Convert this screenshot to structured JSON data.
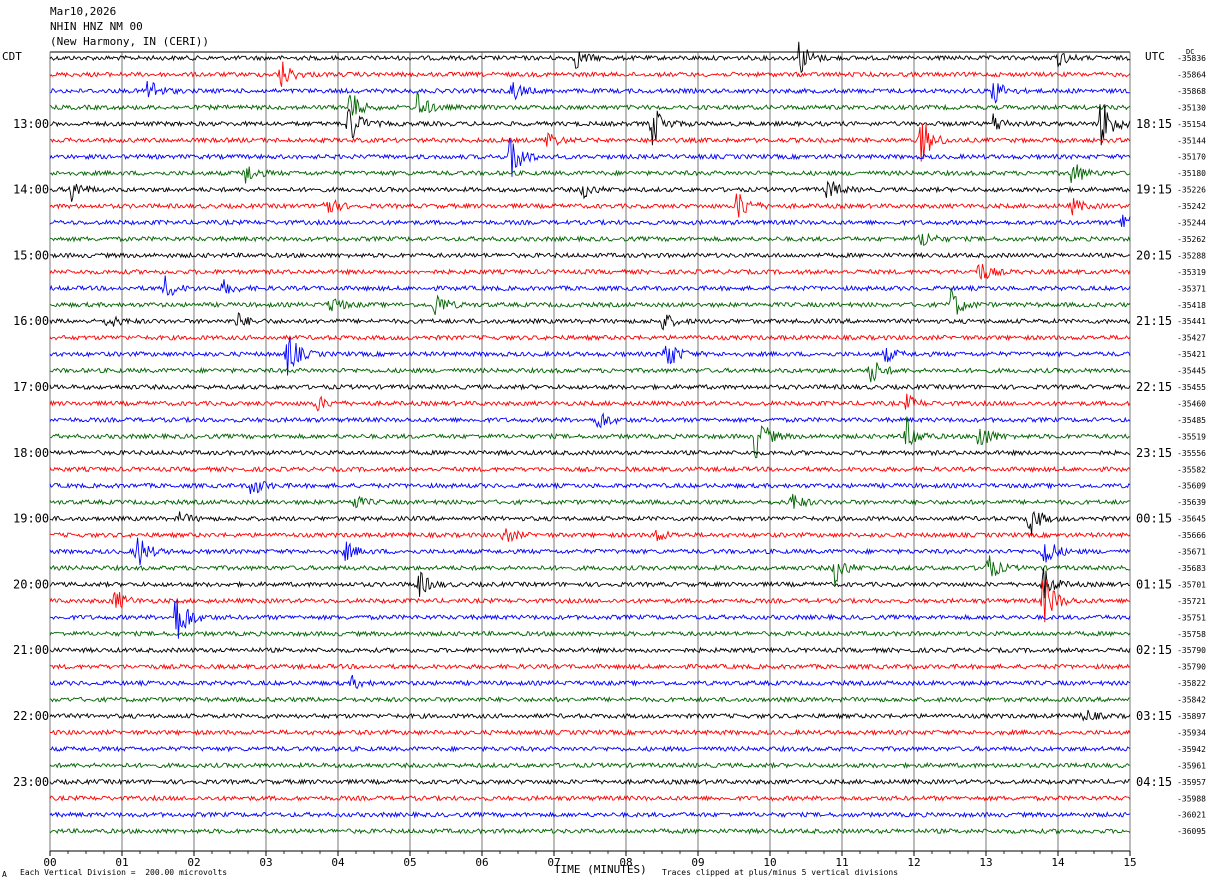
{
  "header": {
    "date": "Mar10,2026",
    "station": "NHIN HNZ NM 00",
    "location": "(New Harmony, IN (CERI))"
  },
  "left_tz": "CDT",
  "right_tz": "UTC",
  "dc_label": "DC",
  "footer": {
    "scale": "Each Vertical Division =  200.00 microvolts",
    "xlabel": "TIME (MINUTES)",
    "clip": "Traces clipped at plus/minus 5 vertical divisions",
    "corner_mark": "A"
  },
  "chart_data": {
    "type": "line",
    "title": "NHIN HNZ NM 00",
    "xlabel": "TIME (MINUTES)",
    "xlim": [
      0,
      15
    ],
    "x_ticks": [
      "00",
      "01",
      "02",
      "03",
      "04",
      "05",
      "06",
      "07",
      "08",
      "09",
      "10",
      "11",
      "12",
      "13",
      "14",
      "15"
    ],
    "trace_colors": [
      "#000000",
      "#ff0000",
      "#0000ff",
      "#006400"
    ],
    "left_time_labels": [
      "13:00",
      "14:00",
      "15:00",
      "16:00",
      "17:00",
      "18:00",
      "19:00",
      "20:00",
      "21:00",
      "22:00",
      "23:00"
    ],
    "right_time_labels": [
      "18:15",
      "19:15",
      "20:15",
      "21:15",
      "22:15",
      "23:15",
      "00:15",
      "01:15",
      "02:15",
      "03:15",
      "04:15"
    ],
    "dc_offsets": [
      "-35836",
      "-35864",
      "-35868",
      "-35130",
      "-35154",
      "-35144",
      "-35170",
      "-35180",
      "-35226",
      "-35242",
      "-35244",
      "-35262",
      "-35288",
      "-35319",
      "-35371",
      "-35418",
      "-35441",
      "-35427",
      "-35421",
      "-35445",
      "-35455",
      "-35460",
      "-35485",
      "-35519",
      "-35556",
      "-35582",
      "-35609",
      "-35639",
      "-35645",
      "-35666",
      "-35671",
      "-35683",
      "-35701",
      "-35721",
      "-35751",
      "-35758",
      "-35790",
      "-35790",
      "-35822",
      "-35842",
      "-35897",
      "-35934",
      "-35942",
      "-35961",
      "-35957",
      "-35988",
      "-36021",
      "-36095"
    ],
    "events": [
      {
        "trace": 0,
        "minute": 7.3,
        "amp": 0.5
      },
      {
        "trace": 0,
        "minute": 10.4,
        "amp": 1.0
      },
      {
        "trace": 0,
        "minute": 14.0,
        "amp": 0.4
      },
      {
        "trace": 1,
        "minute": 3.2,
        "amp": 0.8
      },
      {
        "trace": 2,
        "minute": 1.35,
        "amp": 0.8
      },
      {
        "trace": 2,
        "minute": 6.4,
        "amp": 0.6
      },
      {
        "trace": 2,
        "minute": 13.1,
        "amp": 0.7
      },
      {
        "trace": 3,
        "minute": 4.15,
        "amp": 1.0
      },
      {
        "trace": 3,
        "minute": 5.1,
        "amp": 0.8
      },
      {
        "trace": 4,
        "minute": 4.15,
        "amp": 1.2
      },
      {
        "trace": 4,
        "minute": 8.35,
        "amp": 1.3
      },
      {
        "trace": 4,
        "minute": 13.1,
        "amp": 0.5
      },
      {
        "trace": 4,
        "minute": 14.6,
        "amp": 1.6
      },
      {
        "trace": 5,
        "minute": 6.9,
        "amp": 0.5
      },
      {
        "trace": 5,
        "minute": 12.1,
        "amp": 1.3
      },
      {
        "trace": 6,
        "minute": 6.4,
        "amp": 1.4
      },
      {
        "trace": 7,
        "minute": 2.7,
        "amp": 0.6
      },
      {
        "trace": 7,
        "minute": 14.2,
        "amp": 0.7
      },
      {
        "trace": 8,
        "minute": 0.3,
        "amp": 0.6
      },
      {
        "trace": 8,
        "minute": 7.4,
        "amp": 0.4
      },
      {
        "trace": 8,
        "minute": 10.8,
        "amp": 0.6
      },
      {
        "trace": 9,
        "minute": 3.8,
        "amp": 0.7
      },
      {
        "trace": 9,
        "minute": 9.55,
        "amp": 0.9
      },
      {
        "trace": 9,
        "minute": 14.2,
        "amp": 0.4
      },
      {
        "trace": 10,
        "minute": 14.9,
        "amp": 0.6
      },
      {
        "trace": 11,
        "minute": 12.1,
        "amp": 0.5
      },
      {
        "trace": 13,
        "minute": 12.9,
        "amp": 0.6
      },
      {
        "trace": 14,
        "minute": 1.6,
        "amp": 0.6
      },
      {
        "trace": 14,
        "minute": 2.4,
        "amp": 0.4
      },
      {
        "trace": 15,
        "minute": 3.9,
        "amp": 0.5
      },
      {
        "trace": 15,
        "minute": 5.35,
        "amp": 0.7
      },
      {
        "trace": 15,
        "minute": 12.5,
        "amp": 1.0
      },
      {
        "trace": 16,
        "minute": 0.8,
        "amp": 0.4
      },
      {
        "trace": 16,
        "minute": 2.6,
        "amp": 0.4
      },
      {
        "trace": 16,
        "minute": 8.5,
        "amp": 0.5
      },
      {
        "trace": 18,
        "minute": 3.3,
        "amp": 1.2
      },
      {
        "trace": 18,
        "minute": 8.55,
        "amp": 1.0
      },
      {
        "trace": 18,
        "minute": 11.6,
        "amp": 0.4
      },
      {
        "trace": 19,
        "minute": 11.4,
        "amp": 0.7
      },
      {
        "trace": 21,
        "minute": 3.7,
        "amp": 0.4
      },
      {
        "trace": 21,
        "minute": 11.9,
        "amp": 0.4
      },
      {
        "trace": 22,
        "minute": 7.6,
        "amp": 0.6
      },
      {
        "trace": 23,
        "minute": 9.8,
        "amp": 1.4
      },
      {
        "trace": 23,
        "minute": 11.9,
        "amp": 0.9
      },
      {
        "trace": 23,
        "minute": 12.9,
        "amp": 0.8
      },
      {
        "trace": 26,
        "minute": 2.8,
        "amp": 0.6
      },
      {
        "trace": 27,
        "minute": 4.2,
        "amp": 0.4
      },
      {
        "trace": 27,
        "minute": 10.3,
        "amp": 0.5
      },
      {
        "trace": 28,
        "minute": 1.8,
        "amp": 0.3
      },
      {
        "trace": 28,
        "minute": 13.6,
        "amp": 0.9
      },
      {
        "trace": 29,
        "minute": 6.3,
        "amp": 0.5
      },
      {
        "trace": 29,
        "minute": 8.4,
        "amp": 0.4
      },
      {
        "trace": 30,
        "minute": 1.2,
        "amp": 1.0
      },
      {
        "trace": 30,
        "minute": 4.1,
        "amp": 0.5
      },
      {
        "trace": 30,
        "minute": 13.8,
        "amp": 1.0
      },
      {
        "trace": 31,
        "minute": 10.9,
        "amp": 0.8
      },
      {
        "trace": 31,
        "minute": 13.0,
        "amp": 0.9
      },
      {
        "trace": 32,
        "minute": 5.1,
        "amp": 0.8
      },
      {
        "trace": 32,
        "minute": 13.8,
        "amp": 0.8
      },
      {
        "trace": 33,
        "minute": 0.9,
        "amp": 0.6
      },
      {
        "trace": 33,
        "minute": 13.8,
        "amp": 1.6
      },
      {
        "trace": 34,
        "minute": 1.75,
        "amp": 1.8
      },
      {
        "trace": 38,
        "minute": 4.2,
        "amp": 0.3
      },
      {
        "trace": 40,
        "minute": 14.35,
        "amp": 0.4
      }
    ]
  }
}
